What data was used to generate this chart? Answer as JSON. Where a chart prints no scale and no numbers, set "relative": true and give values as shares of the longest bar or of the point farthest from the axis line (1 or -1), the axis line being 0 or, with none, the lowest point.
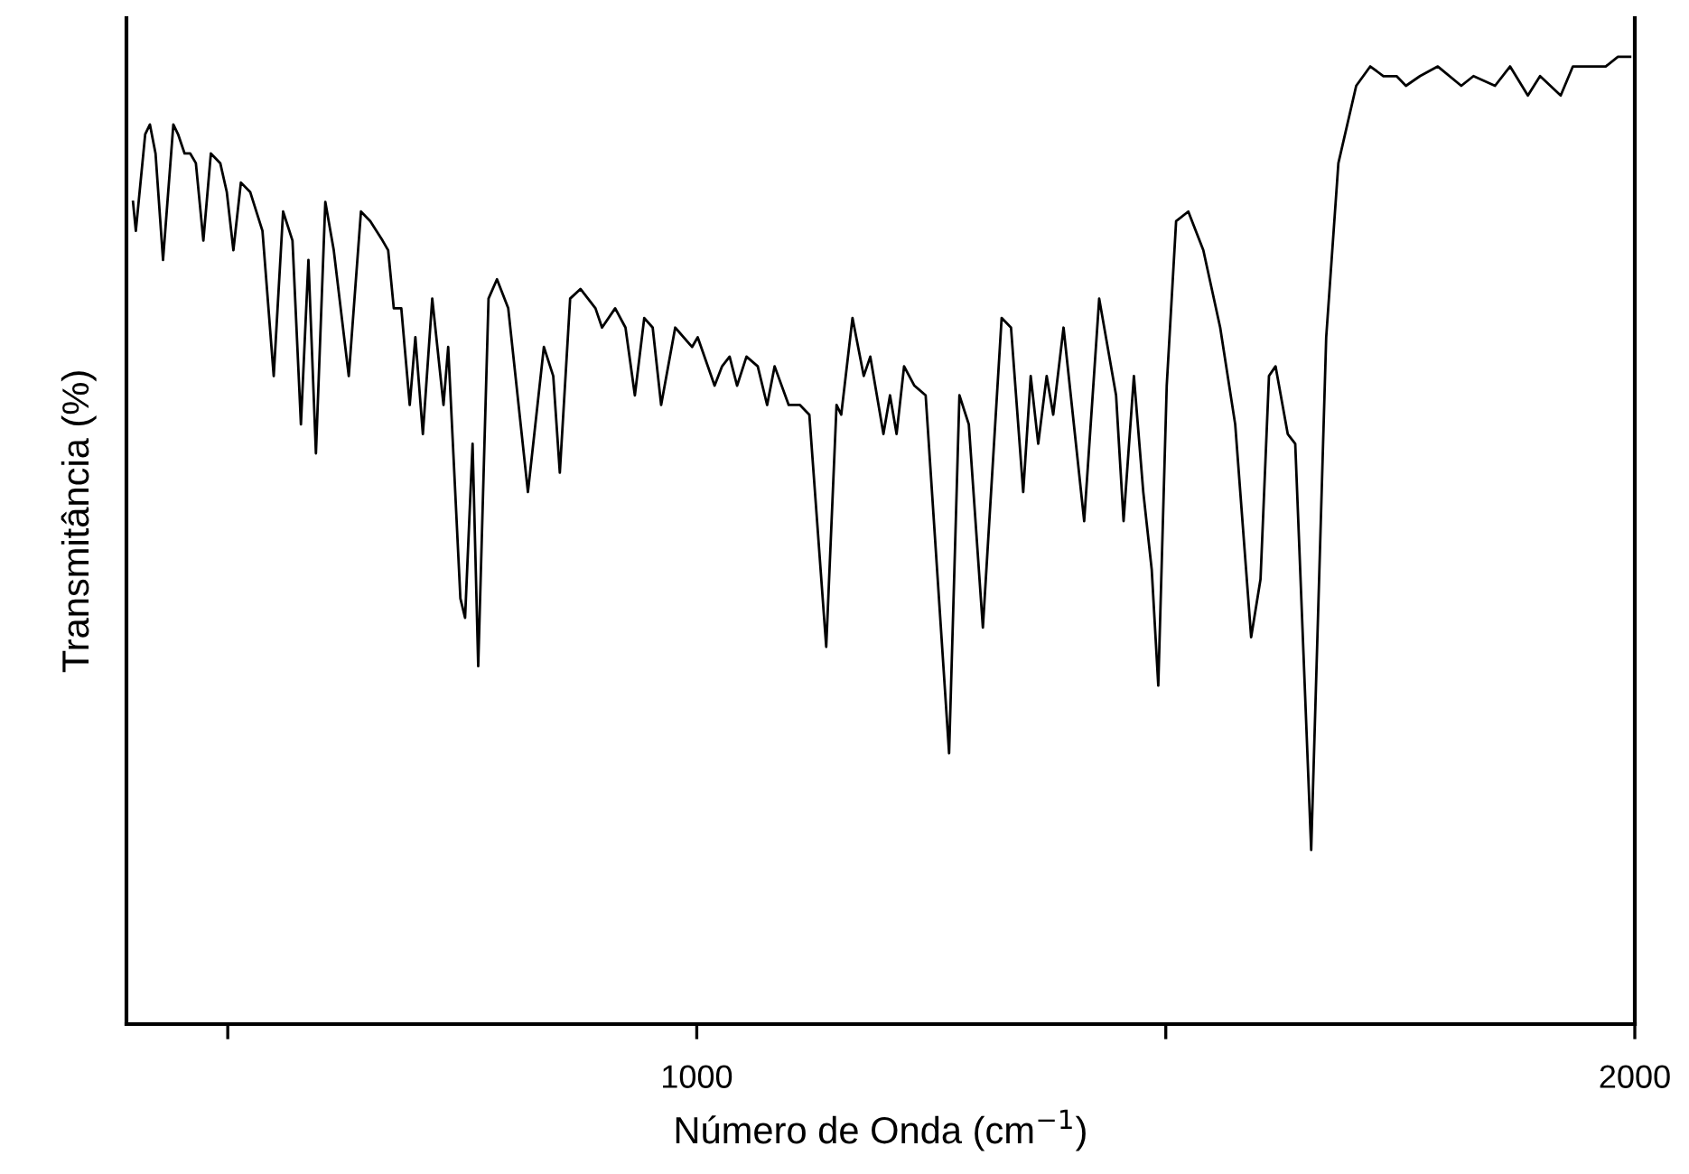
{
  "chart_data": {
    "type": "line",
    "xlabel": "Número de Onda (cm$^{−1}$)",
    "ylabel": "Transmitância (%)",
    "relative": true,
    "xlim": [
      392,
      2000
    ],
    "xticks": [
      {
        "value": 500,
        "label": null
      },
      1000,
      {
        "value": 1500,
        "label": null
      },
      2000
    ],
    "grid": false,
    "legend": false,
    "series": [
      {
        "color": "#000000",
        "x": [
          399,
          402,
          412,
          417,
          423,
          431,
          442,
          447,
          454,
          460,
          466,
          474,
          482,
          492,
          499,
          506,
          514,
          524,
          537,
          549,
          559,
          569,
          578,
          586,
          594,
          604,
          613,
          629,
          642,
          652,
          665,
          671,
          677,
          685,
          694,
          700,
          708,
          718,
          730,
          735,
          748,
          753,
          761,
          767,
          778,
          787,
          799,
          820,
          837,
          847,
          854,
          865,
          876,
          892,
          899,
          913,
          924,
          934,
          944,
          953,
          962,
          977,
          995,
          1001,
          1019,
          1027,
          1035,
          1043,
          1053,
          1065,
          1075,
          1083,
          1098,
          1110,
          1120,
          1138,
          1149,
          1154,
          1166,
          1178,
          1185,
          1199,
          1206,
          1213,
          1221,
          1232,
          1244,
          1269,
          1280,
          1290,
          1305,
          1325,
          1335,
          1348,
          1356,
          1364,
          1373,
          1380,
          1391,
          1413,
          1429,
          1447,
          1455,
          1466,
          1476,
          1485,
          1492,
          1501,
          1511,
          1524,
          1540,
          1558,
          1574,
          1591,
          1601,
          1610,
          1617,
          1630,
          1638,
          1655,
          1671,
          1684,
          1703,
          1718,
          1732,
          1746,
          1756,
          1771,
          1790,
          1815,
          1828,
          1851,
          1867,
          1886,
          1899,
          1921,
          1934,
          1956,
          1969,
          1982,
          1995
        ],
        "values": [
          0.85,
          0.82,
          0.92,
          0.93,
          0.9,
          0.79,
          0.93,
          0.92,
          0.9,
          0.9,
          0.89,
          0.81,
          0.9,
          0.89,
          0.86,
          0.8,
          0.87,
          0.86,
          0.82,
          0.67,
          0.84,
          0.81,
          0.62,
          0.79,
          0.59,
          0.85,
          0.8,
          0.67,
          0.84,
          0.83,
          0.81,
          0.8,
          0.74,
          0.74,
          0.64,
          0.71,
          0.61,
          0.75,
          0.64,
          0.7,
          0.44,
          0.42,
          0.6,
          0.37,
          0.75,
          0.77,
          0.74,
          0.55,
          0.7,
          0.67,
          0.57,
          0.75,
          0.76,
          0.74,
          0.72,
          0.74,
          0.72,
          0.65,
          0.73,
          0.72,
          0.64,
          0.72,
          0.7,
          0.71,
          0.66,
          0.68,
          0.69,
          0.66,
          0.69,
          0.68,
          0.64,
          0.68,
          0.64,
          0.64,
          0.63,
          0.39,
          0.64,
          0.63,
          0.73,
          0.67,
          0.69,
          0.61,
          0.65,
          0.61,
          0.68,
          0.66,
          0.65,
          0.28,
          0.65,
          0.62,
          0.41,
          0.73,
          0.72,
          0.55,
          0.67,
          0.6,
          0.67,
          0.63,
          0.72,
          0.52,
          0.75,
          0.65,
          0.52,
          0.67,
          0.55,
          0.47,
          0.35,
          0.66,
          0.83,
          0.84,
          0.8,
          0.72,
          0.62,
          0.4,
          0.46,
          0.67,
          0.68,
          0.61,
          0.6,
          0.18,
          0.71,
          0.89,
          0.97,
          0.99,
          0.98,
          0.98,
          0.97,
          0.98,
          0.99,
          0.97,
          0.98,
          0.97,
          0.99,
          0.96,
          0.98,
          0.96,
          0.99,
          0.99,
          0.99,
          1.0,
          1.0
        ]
      }
    ]
  }
}
